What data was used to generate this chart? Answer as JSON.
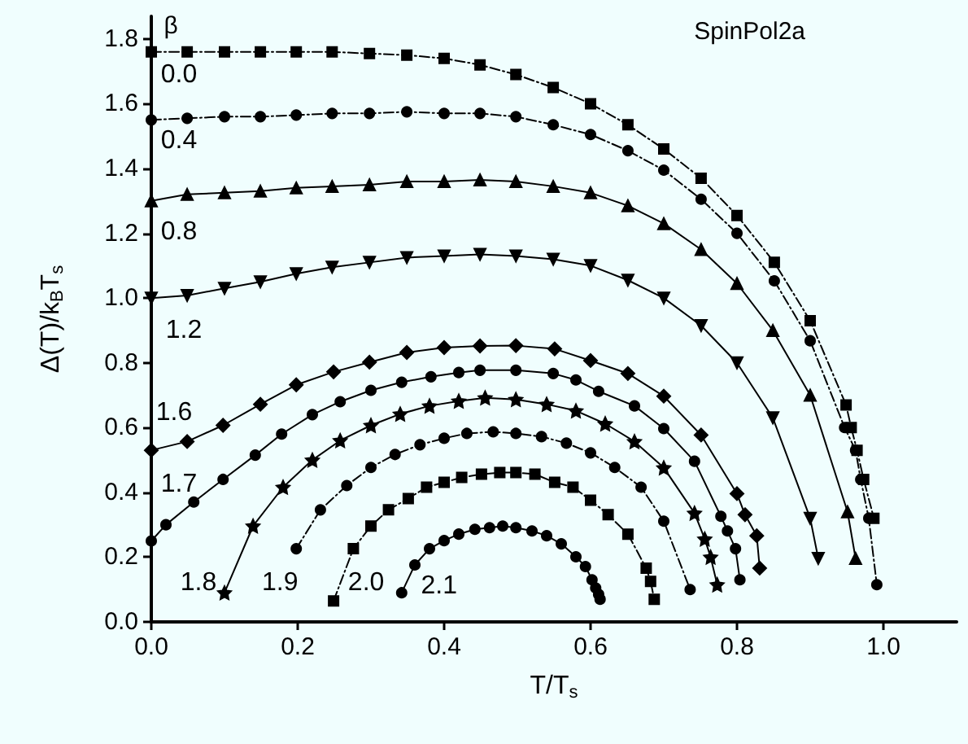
{
  "chart_data": {
    "type": "line",
    "xlabel": "T/T$_{s}$",
    "ylabel": "Δ(T)/k$_{B}$T$_{s}$",
    "legend_title": "β",
    "legend": false,
    "grid": false,
    "annotations": [
      "SpinPol2a"
    ],
    "xlim": [
      0,
      1.1
    ],
    "ylim": [
      0,
      1.87
    ],
    "xticks": [
      {
        "value": 0,
        "label": "0.0"
      },
      {
        "value": 0.2,
        "label": "0.2"
      },
      {
        "value": 0.4,
        "label": "0.4"
      },
      {
        "value": 0.6,
        "label": "0.6"
      },
      {
        "value": 0.8,
        "label": "0.8"
      },
      {
        "value": 1,
        "label": "1.0"
      }
    ],
    "yticks": [
      {
        "value": 0,
        "label": "0.0"
      },
      {
        "value": 0.2,
        "label": "0.2"
      },
      {
        "value": 0.4,
        "label": "0.4"
      },
      {
        "value": 0.6,
        "label": "0.6"
      },
      {
        "value": 0.8,
        "label": "0.8"
      },
      {
        "value": 1,
        "label": "1.0"
      },
      {
        "value": 1.2,
        "label": "1.2"
      },
      {
        "value": 1.4,
        "label": "1.4"
      },
      {
        "value": 1.6,
        "label": "1.6"
      },
      {
        "value": 1.8,
        "label": "1.8"
      }
    ],
    "series": [
      {
        "name": "0.0",
        "color": "#000000",
        "marker": "square",
        "line_style": "dashed",
        "x": [
          0,
          0.049,
          0.1,
          0.149,
          0.198,
          0.247,
          0.298,
          0.349,
          0.4,
          0.449,
          0.498,
          0.549,
          0.6,
          0.651,
          0.7,
          0.751,
          0.8,
          0.851,
          0.9,
          0.949,
          0.956,
          0.964,
          0.973,
          0.987
        ],
        "values": [
          1.76,
          1.76,
          1.76,
          1.76,
          1.76,
          1.76,
          1.755,
          1.75,
          1.74,
          1.72,
          1.69,
          1.65,
          1.6,
          1.535,
          1.46,
          1.37,
          1.255,
          1.11,
          0.93,
          0.67,
          0.6,
          0.53,
          0.44,
          0.32
        ]
      },
      {
        "name": "0.4",
        "color": "#000000",
        "marker": "circle",
        "line_style": "dashed",
        "x": [
          0,
          0.049,
          0.1,
          0.149,
          0.198,
          0.247,
          0.298,
          0.349,
          0.4,
          0.449,
          0.498,
          0.549,
          0.6,
          0.651,
          0.7,
          0.751,
          0.8,
          0.851,
          0.9,
          0.947,
          0.962,
          0.969,
          0.98,
          0.991
        ],
        "values": [
          1.55,
          1.555,
          1.56,
          1.56,
          1.565,
          1.57,
          1.57,
          1.575,
          1.57,
          1.57,
          1.56,
          1.535,
          1.505,
          1.455,
          1.395,
          1.305,
          1.2,
          1.053,
          0.868,
          0.6,
          0.53,
          0.44,
          0.32,
          0.115
        ]
      },
      {
        "name": "0.8",
        "color": "#000000",
        "marker": "triangle",
        "line_style": "solid",
        "x": [
          0,
          0.049,
          0.1,
          0.149,
          0.198,
          0.247,
          0.298,
          0.349,
          0.4,
          0.449,
          0.498,
          0.549,
          0.6,
          0.651,
          0.7,
          0.751,
          0.8,
          0.849,
          0.9,
          0.951,
          0.962
        ],
        "values": [
          1.3,
          1.32,
          1.325,
          1.33,
          1.34,
          1.345,
          1.35,
          1.36,
          1.36,
          1.365,
          1.36,
          1.345,
          1.325,
          1.285,
          1.23,
          1.15,
          1.045,
          0.9,
          0.7,
          0.34,
          0.196
        ]
      },
      {
        "name": "1.2",
        "color": "#000000",
        "marker": "triangle_down",
        "line_style": "solid",
        "x": [
          0,
          0.049,
          0.1,
          0.149,
          0.198,
          0.247,
          0.298,
          0.349,
          0.4,
          0.449,
          0.498,
          0.549,
          0.6,
          0.651,
          0.7,
          0.751,
          0.8,
          0.849,
          0.9,
          0.911
        ],
        "values": [
          1.0,
          1.008,
          1.03,
          1.05,
          1.075,
          1.095,
          1.11,
          1.125,
          1.13,
          1.135,
          1.13,
          1.12,
          1.1,
          1.055,
          1.0,
          0.915,
          0.8,
          0.63,
          0.32,
          0.196
        ]
      },
      {
        "name": "1.6",
        "color": "#000000",
        "marker": "diamond",
        "line_style": "solid",
        "x": [
          0,
          0.049,
          0.098,
          0.149,
          0.198,
          0.249,
          0.298,
          0.349,
          0.4,
          0.449,
          0.498,
          0.551,
          0.6,
          0.651,
          0.7,
          0.751,
          0.8,
          0.811,
          0.827,
          0.831
        ],
        "values": [
          0.53,
          0.557,
          0.607,
          0.672,
          0.732,
          0.772,
          0.802,
          0.832,
          0.847,
          0.852,
          0.853,
          0.843,
          0.807,
          0.767,
          0.697,
          0.577,
          0.396,
          0.331,
          0.266,
          0.166
        ]
      },
      {
        "name": "1.7",
        "color": "#000000",
        "marker": "circle",
        "line_style": "solid",
        "x": [
          0,
          0.02,
          0.058,
          0.098,
          0.142,
          0.178,
          0.22,
          0.258,
          0.3,
          0.342,
          0.382,
          0.42,
          0.449,
          0.498,
          0.549,
          0.58,
          0.611,
          0.66,
          0.7,
          0.742,
          0.778,
          0.787,
          0.798,
          0.804
        ],
        "values": [
          0.25,
          0.3,
          0.37,
          0.44,
          0.515,
          0.58,
          0.64,
          0.68,
          0.715,
          0.74,
          0.757,
          0.77,
          0.777,
          0.777,
          0.767,
          0.747,
          0.712,
          0.667,
          0.597,
          0.496,
          0.326,
          0.281,
          0.226,
          0.13
        ]
      },
      {
        "name": "1.8",
        "color": "#000000",
        "marker": "star",
        "line_style": "solid",
        "x": [
          0.1,
          0.139,
          0.18,
          0.22,
          0.258,
          0.3,
          0.34,
          0.38,
          0.42,
          0.456,
          0.498,
          0.54,
          0.58,
          0.62,
          0.66,
          0.7,
          0.742,
          0.756,
          0.764,
          0.773
        ],
        "values": [
          0.09,
          0.296,
          0.416,
          0.5,
          0.56,
          0.607,
          0.642,
          0.667,
          0.682,
          0.692,
          0.687,
          0.672,
          0.652,
          0.612,
          0.557,
          0.476,
          0.336,
          0.256,
          0.2,
          0.115
        ]
      },
      {
        "name": "1.9",
        "color": "#000000",
        "marker": "circle",
        "line_style": "dashed",
        "x": [
          0.198,
          0.231,
          0.267,
          0.3,
          0.333,
          0.367,
          0.4,
          0.431,
          0.467,
          0.498,
          0.533,
          0.567,
          0.6,
          0.633,
          0.669,
          0.7,
          0.736
        ],
        "values": [
          0.226,
          0.346,
          0.421,
          0.477,
          0.517,
          0.547,
          0.567,
          0.582,
          0.587,
          0.582,
          0.572,
          0.552,
          0.522,
          0.477,
          0.416,
          0.311,
          0.1
        ]
      },
      {
        "name": "2.0",
        "color": "#000000",
        "marker": "square",
        "line_style": "dashed",
        "x": [
          0.249,
          0.276,
          0.3,
          0.324,
          0.351,
          0.376,
          0.4,
          0.424,
          0.451,
          0.476,
          0.498,
          0.524,
          0.551,
          0.576,
          0.6,
          0.624,
          0.651,
          0.676,
          0.682,
          0.687
        ],
        "values": [
          0.065,
          0.226,
          0.296,
          0.346,
          0.381,
          0.416,
          0.431,
          0.446,
          0.456,
          0.461,
          0.461,
          0.456,
          0.431,
          0.416,
          0.376,
          0.331,
          0.271,
          0.166,
          0.125,
          0.07
        ]
      },
      {
        "name": "2.1",
        "color": "#000000",
        "marker": "circle",
        "line_style": "solid",
        "x": [
          0.342,
          0.36,
          0.38,
          0.4,
          0.42,
          0.442,
          0.462,
          0.48,
          0.498,
          0.52,
          0.54,
          0.56,
          0.58,
          0.593,
          0.602,
          0.607,
          0.611,
          0.613
        ],
        "values": [
          0.09,
          0.176,
          0.226,
          0.251,
          0.271,
          0.286,
          0.291,
          0.296,
          0.291,
          0.281,
          0.266,
          0.241,
          0.201,
          0.171,
          0.13,
          0.105,
          0.085,
          0.07
        ]
      }
    ]
  }
}
